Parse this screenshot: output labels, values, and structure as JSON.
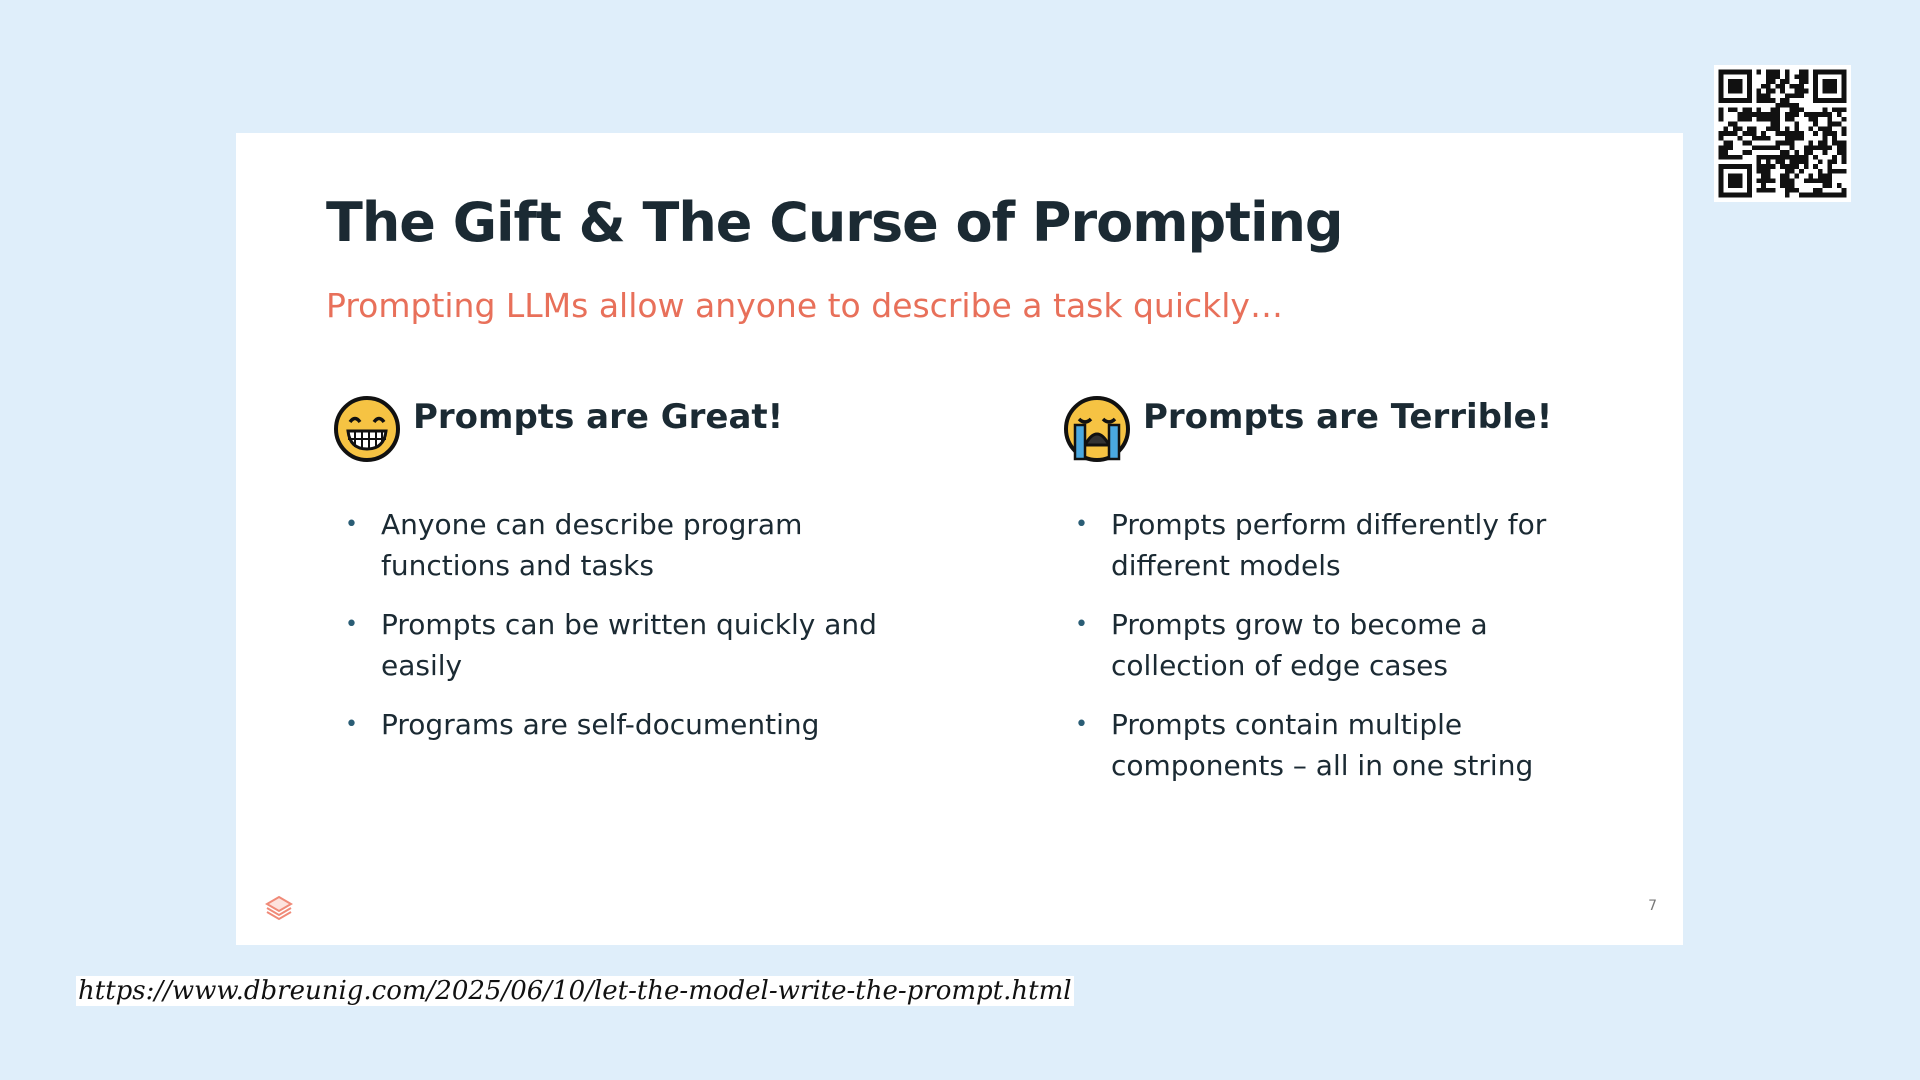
{
  "slide": {
    "title": "The Gift & The Curse of Prompting",
    "subtitle": "Prompting LLMs allow anyone to describe a task quickly…",
    "left": {
      "icon": "grinning-face-emoji-icon",
      "heading": "Prompts are Great!",
      "bullets": [
        "Anyone can describe program functions and tasks",
        "Prompts can be written quickly and easily",
        "Programs are self-documenting"
      ]
    },
    "right": {
      "icon": "crying-face-emoji-icon",
      "heading": "Prompts are Terrible!",
      "bullets": [
        "Prompts perform differently for different models",
        "Prompts grow to become a collection of edge cases",
        "Prompts contain multiple components – all in one string"
      ]
    },
    "page_number": "7",
    "logo_icon": "stacked-layers-logo-icon"
  },
  "url": "https://www.dbreunig.com/2025/06/10/let-the-model-write-the-prompt.html",
  "qr_icon": "qr-code-icon",
  "colors": {
    "background": "#dfeefa",
    "accent": "#e8705a",
    "text": "#1b2a33"
  }
}
